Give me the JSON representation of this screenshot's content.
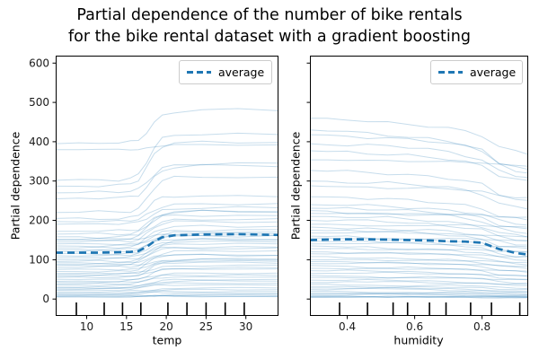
{
  "figure": {
    "title_line1": "Partial dependence of the number of bike rentals",
    "title_line2": "for the bike rental dataset with a gradient boosting"
  },
  "legend": {
    "label": "average"
  },
  "colors": {
    "ice_line": "rgba(31, 119, 180, 0.25)",
    "average_line": "#1f77b4",
    "axis": "#000000",
    "decile_rug": "#000000",
    "tick_text": "#1a1a1a"
  },
  "chart_data": [
    {
      "type": "line",
      "name": "ice-plot-temp",
      "xlabel": "temp",
      "ylabel": "Partial dependence",
      "legend_entries": [
        "average"
      ],
      "legend_position": "upper right",
      "grid": false,
      "xlim": [
        6.1,
        34.1
      ],
      "ylim": [
        -43,
        619
      ],
      "xticks": [
        10,
        15,
        20,
        25,
        30
      ],
      "xtick_labels": [
        "10",
        "15",
        "20",
        "25",
        "30"
      ],
      "yticks": [
        0,
        100,
        200,
        300,
        400,
        500,
        600
      ],
      "ytick_labels": [
        "0",
        "100",
        "200",
        "300",
        "400",
        "500",
        "600"
      ],
      "show_ytick_labels": true,
      "x": [
        6.1,
        9.0,
        11.5,
        14.0,
        15.5,
        16.5,
        17.5,
        18.5,
        19.5,
        21.0,
        24.5,
        29.0,
        34.1
      ],
      "average": [
        118,
        118,
        118,
        119,
        120,
        122,
        132,
        147,
        157,
        162,
        164,
        165,
        163
      ],
      "ice_profile": [
        0,
        0.01,
        0.015,
        0.02,
        0.05,
        0.12,
        0.38,
        0.68,
        0.88,
        0.97,
        1.0,
        1.0,
        0.99
      ],
      "ice_lines_start_end": [
        [
          395,
          480
        ],
        [
          380,
          392
        ],
        [
          302,
          420
        ],
        [
          287,
          400
        ],
        [
          270,
          345
        ],
        [
          255,
          338
        ],
        [
          220,
          310
        ],
        [
          205,
          262
        ],
        [
          197,
          243
        ],
        [
          190,
          232
        ],
        [
          172,
          222
        ],
        [
          165,
          212
        ],
        [
          158,
          224
        ],
        [
          152,
          204
        ],
        [
          150,
          166
        ],
        [
          145,
          196
        ],
        [
          140,
          162
        ],
        [
          135,
          186
        ],
        [
          130,
          176
        ],
        [
          125,
          152
        ],
        [
          120,
          170
        ],
        [
          115,
          146
        ],
        [
          110,
          162
        ],
        [
          105,
          132
        ],
        [
          100,
          150
        ],
        [
          95,
          140
        ],
        [
          92,
          112
        ],
        [
          88,
          130
        ],
        [
          85,
          102
        ],
        [
          80,
          122
        ],
        [
          75,
          96
        ],
        [
          70,
          112
        ],
        [
          65,
          86
        ],
        [
          62,
          100
        ],
        [
          58,
          76
        ],
        [
          55,
          92
        ],
        [
          50,
          66
        ],
        [
          45,
          80
        ],
        [
          42,
          56
        ],
        [
          38,
          60
        ],
        [
          35,
          46
        ],
        [
          30,
          50
        ],
        [
          28,
          36
        ],
        [
          25,
          40
        ],
        [
          22,
          28
        ],
        [
          18,
          24
        ],
        [
          15,
          19
        ],
        [
          12,
          15
        ],
        [
          10,
          12
        ],
        [
          8,
          9
        ],
        [
          6,
          7
        ],
        [
          5,
          6
        ]
      ],
      "decile_marks": [
        8.7,
        12.2,
        14.5,
        16.8,
        20.2,
        22.6,
        25.0,
        27.4,
        29.8
      ]
    },
    {
      "type": "line",
      "name": "ice-plot-humidity",
      "xlabel": "humidity",
      "ylabel": "Partial dependence",
      "legend_entries": [
        "average"
      ],
      "legend_position": "upper right",
      "grid": false,
      "xlim": [
        0.289,
        0.937
      ],
      "ylim": [
        -43,
        619
      ],
      "xticks": [
        0.4,
        0.6,
        0.8
      ],
      "xtick_labels": [
        "0.4",
        "0.6",
        "0.8"
      ],
      "yticks": [
        0,
        100,
        200,
        300,
        400,
        500,
        600
      ],
      "ytick_labels": [],
      "show_ytick_labels": false,
      "x": [
        0.289,
        0.34,
        0.4,
        0.46,
        0.52,
        0.58,
        0.64,
        0.7,
        0.75,
        0.8,
        0.85,
        0.9,
        0.937
      ],
      "average": [
        150,
        151,
        152,
        152,
        151,
        150,
        149,
        147,
        146,
        143,
        127,
        117,
        113
      ],
      "ice_profile": [
        0,
        0.02,
        0.04,
        0.07,
        0.1,
        0.14,
        0.19,
        0.26,
        0.35,
        0.48,
        0.8,
        0.94,
        1.0
      ],
      "ice_lines_start_end": [
        [
          460,
          368
        ],
        [
          430,
          320
        ],
        [
          418,
          330
        ],
        [
          395,
          310
        ],
        [
          377,
          300
        ],
        [
          354,
          338
        ],
        [
          327,
          250
        ],
        [
          300,
          230
        ],
        [
          288,
          258
        ],
        [
          260,
          200
        ],
        [
          240,
          188
        ],
        [
          231,
          178
        ],
        [
          225,
          168
        ],
        [
          218,
          208
        ],
        [
          210,
          158
        ],
        [
          200,
          148
        ],
        [
          190,
          183
        ],
        [
          183,
          138
        ],
        [
          175,
          128
        ],
        [
          168,
          158
        ],
        [
          160,
          118
        ],
        [
          155,
          148
        ],
        [
          148,
          108
        ],
        [
          140,
          133
        ],
        [
          135,
          98
        ],
        [
          128,
          120
        ],
        [
          120,
          88
        ],
        [
          115,
          108
        ],
        [
          108,
          78
        ],
        [
          100,
          93
        ],
        [
          95,
          68
        ],
        [
          90,
          84
        ],
        [
          85,
          58
        ],
        [
          78,
          71
        ],
        [
          72,
          49
        ],
        [
          65,
          59
        ],
        [
          60,
          41
        ],
        [
          55,
          49
        ],
        [
          48,
          34
        ],
        [
          42,
          37
        ],
        [
          38,
          27
        ],
        [
          32,
          24
        ],
        [
          28,
          19
        ],
        [
          24,
          17
        ],
        [
          20,
          13
        ],
        [
          16,
          11
        ],
        [
          13,
          9
        ],
        [
          10,
          7
        ],
        [
          8,
          6
        ],
        [
          6,
          5
        ],
        [
          5,
          4
        ],
        [
          4,
          3
        ]
      ],
      "decile_marks": [
        0.377,
        0.46,
        0.536,
        0.579,
        0.644,
        0.693,
        0.766,
        0.828,
        0.912
      ]
    }
  ]
}
